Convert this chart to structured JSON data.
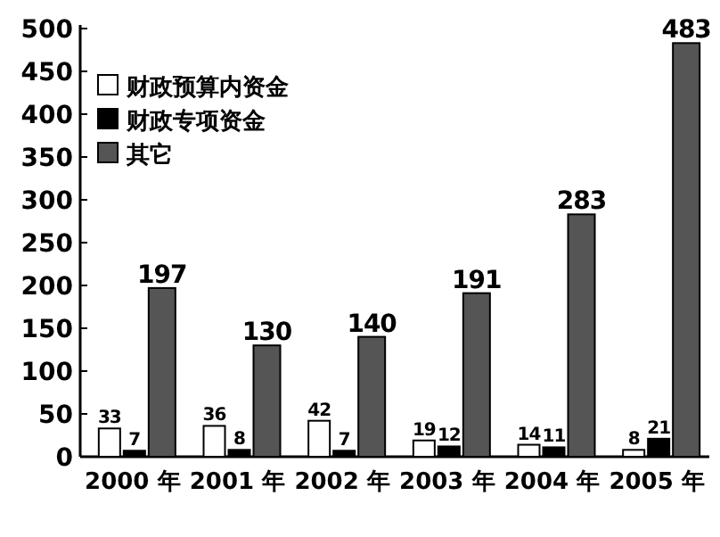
{
  "chart_data": {
    "type": "bar",
    "categories": [
      "2000 年",
      "2001 年",
      "2002 年",
      "2003 年",
      "2004 年",
      "2005 年"
    ],
    "series": [
      {
        "name": "财政预算内资金",
        "color": "#ffffff",
        "values": [
          33,
          36,
          42,
          19,
          14,
          8
        ]
      },
      {
        "name": "财政专项资金",
        "color": "#000000",
        "values": [
          7,
          8,
          7,
          12,
          11,
          21
        ]
      },
      {
        "name": "其它",
        "color": "#555555",
        "values": [
          197,
          130,
          140,
          191,
          283,
          483
        ]
      }
    ],
    "ylim": [
      0,
      500
    ],
    "yticks": [
      0,
      50,
      100,
      150,
      200,
      250,
      300,
      350,
      400,
      450,
      500
    ],
    "data_labels": true,
    "legend": "top left",
    "grid": false
  }
}
